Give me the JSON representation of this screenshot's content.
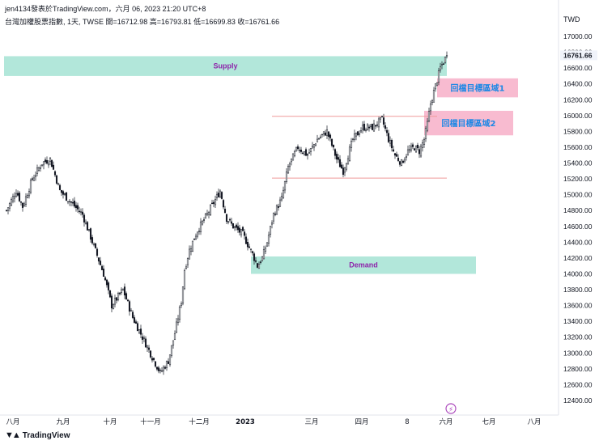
{
  "header": {
    "line1": "jen4134發表於TradingView.com，六月 06, 2023 21:20 UTC+8",
    "line2": "台灣加權股票指數, 1天, TWSE  開=16712.98  高=16793.81  低=16699.83  收=16761.66"
  },
  "footer": {
    "brand": "TradingView",
    "logo_icon": "tradingview-logo-icon"
  },
  "colors": {
    "candle": "#131722",
    "zone_fill": "#b2e7da",
    "zone_text": "#8e24aa",
    "target_fill": "#f8bbd0",
    "target_text": "#1e88e5",
    "range_line": "#ef9a9a",
    "grid_axis": "#e0e3eb",
    "price_tag_bg": "#f0f3fa"
  },
  "chart_data": {
    "type": "candlestick",
    "currency": "TWD",
    "ylim": [
      12300,
      17300
    ],
    "y_ticks": [
      12400,
      12600,
      12800,
      13000,
      13200,
      13400,
      13600,
      13800,
      14000,
      14200,
      14400,
      14600,
      14800,
      15000,
      15200,
      15400,
      15600,
      15800,
      16000,
      16200,
      16400,
      16600,
      16800,
      17000
    ],
    "x_ticks": [
      "八月",
      "九月",
      "十月",
      "十一月",
      "十二月",
      "2023",
      "三月",
      "四月",
      "8",
      "六月",
      "七月",
      "八月"
    ],
    "last_price": "16761.66",
    "close_path": [
      [
        0,
        14800
      ],
      [
        6,
        15050
      ],
      [
        10,
        14850
      ],
      [
        16,
        15200
      ],
      [
        22,
        15400
      ],
      [
        27,
        15450
      ],
      [
        33,
        15050
      ],
      [
        40,
        14900
      ],
      [
        47,
        14750
      ],
      [
        54,
        14350
      ],
      [
        60,
        14000
      ],
      [
        65,
        13600
      ],
      [
        72,
        13800
      ],
      [
        78,
        13450
      ],
      [
        84,
        13200
      ],
      [
        90,
        12950
      ],
      [
        95,
        12750
      ],
      [
        100,
        12900
      ],
      [
        104,
        13250
      ],
      [
        108,
        13650
      ],
      [
        110,
        14050
      ],
      [
        113,
        14300
      ],
      [
        118,
        14550
      ],
      [
        124,
        14750
      ],
      [
        128,
        14900
      ],
      [
        132,
        15050
      ],
      [
        136,
        14700
      ],
      [
        140,
        14600
      ],
      [
        146,
        14500
      ],
      [
        152,
        14250
      ],
      [
        155,
        14100
      ],
      [
        158,
        14200
      ],
      [
        161,
        14400
      ],
      [
        165,
        14750
      ],
      [
        170,
        14950
      ],
      [
        174,
        15350
      ],
      [
        180,
        15600
      ],
      [
        186,
        15500
      ],
      [
        192,
        15700
      ],
      [
        198,
        15800
      ],
      [
        204,
        15450
      ],
      [
        208,
        15300
      ],
      [
        214,
        15700
      ],
      [
        220,
        15850
      ],
      [
        226,
        15850
      ],
      [
        232,
        15950
      ],
      [
        236,
        15700
      ],
      [
        240,
        15500
      ],
      [
        244,
        15400
      ],
      [
        248,
        15550
      ],
      [
        252,
        15600
      ],
      [
        255,
        15550
      ],
      [
        258,
        15700
      ],
      [
        260,
        15900
      ],
      [
        262,
        16150
      ],
      [
        264,
        16300
      ],
      [
        266,
        16450
      ],
      [
        268,
        16600
      ],
      [
        270,
        16680
      ],
      [
        272,
        16762
      ]
    ],
    "zones": [
      {
        "label": "Supply",
        "from": 16500,
        "to": 16750,
        "x_start": 0,
        "x_end": 272
      },
      {
        "label": "Demand",
        "from": 14000,
        "to": 14220,
        "x_start": 151,
        "x_end": 290
      }
    ],
    "targets": [
      {
        "label": "回檔目標區域1",
        "from": 16230,
        "to": 16470,
        "x_start": 266,
        "x_end": 316
      },
      {
        "label": "回檔目標區域2",
        "from": 15750,
        "to": 16060,
        "x_start": 258,
        "x_end": 313
      }
    ],
    "range_lines": [
      {
        "value": 15990,
        "x_start": 164,
        "x_end": 266
      },
      {
        "value": 15210,
        "x_start": 164,
        "x_end": 272
      }
    ]
  }
}
